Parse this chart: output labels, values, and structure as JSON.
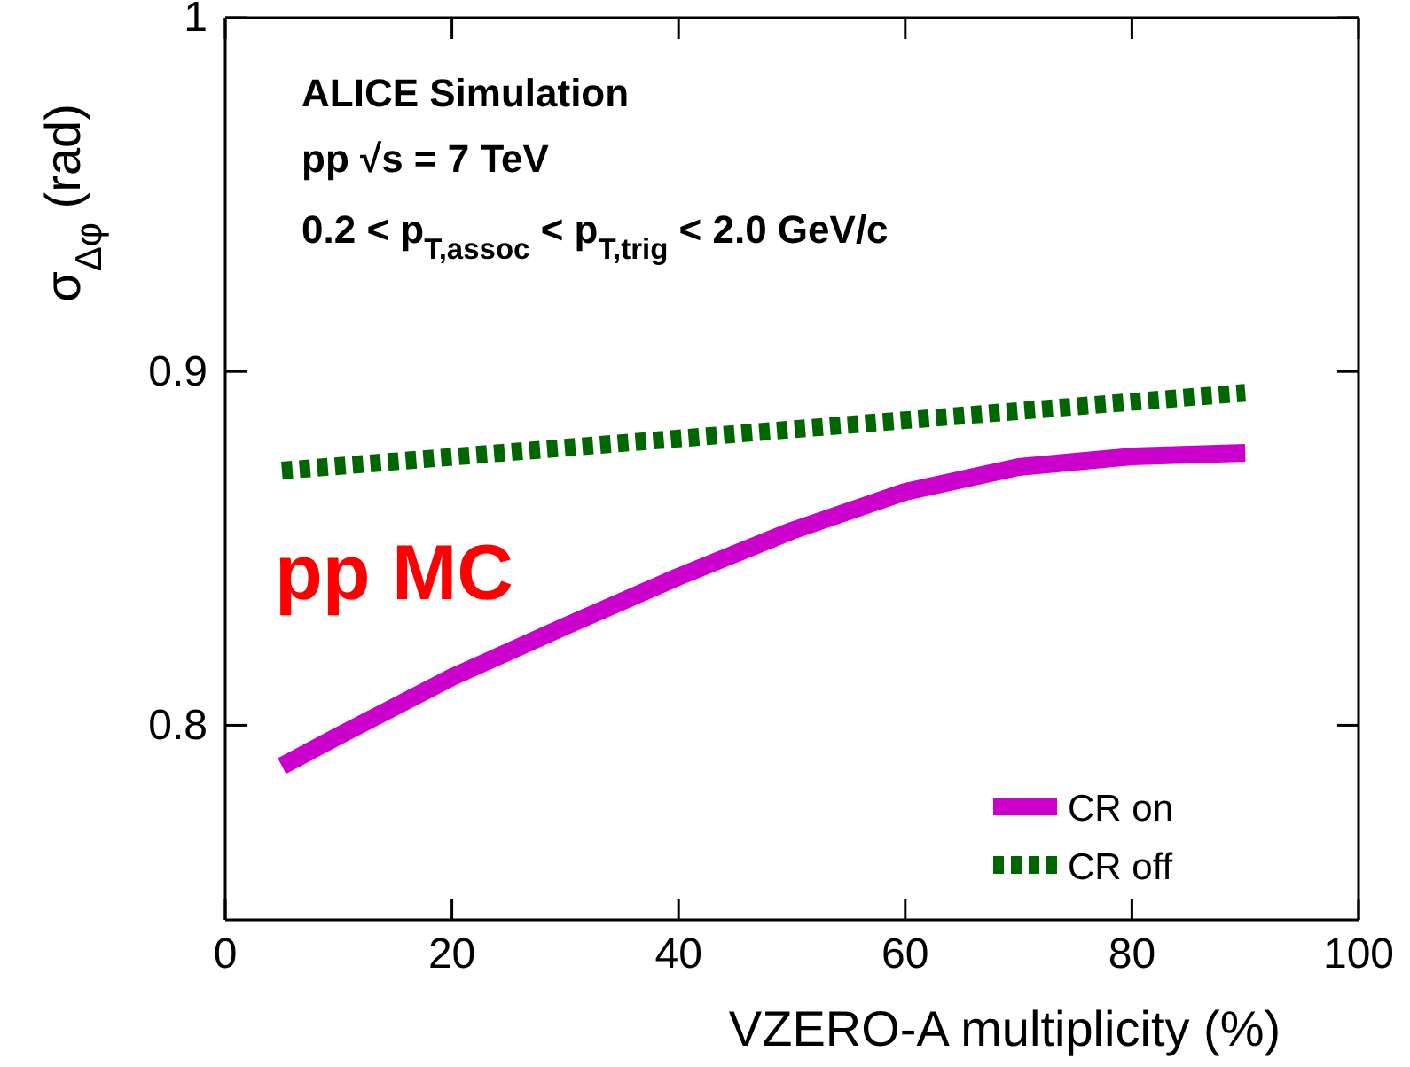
{
  "chart_data": {
    "type": "line",
    "xlabel": "VZERO-A multiplicity (%)",
    "ylabel": "σ$_{Δφ}$ (rad)",
    "xlim": [
      0,
      100
    ],
    "xticks": [
      0,
      20,
      40,
      60,
      80,
      100
    ],
    "ylim": [
      0.745,
      1.0
    ],
    "yticks": [
      0.8,
      0.9,
      1
    ],
    "legend": "bottom right",
    "grid": false,
    "annotations": [
      "ALICE Simulation",
      "pp √s = 7 TeV",
      "0.2 < p$_{T,assoc}$ < p$_{T,trig}$ < 2.0 GeV/c",
      "pp MC"
    ],
    "series": [
      {
        "name": "CR on",
        "color": "#cc00cc",
        "line_style": "solid",
        "x": [
          5,
          10,
          20,
          30,
          40,
          50,
          60,
          70,
          80,
          90
        ],
        "values": [
          0.7885,
          0.797,
          0.8136,
          0.828,
          0.842,
          0.855,
          0.866,
          0.873,
          0.876,
          0.877
        ]
      },
      {
        "name": "CR off",
        "color": "#006600",
        "line_style": "dashed",
        "x": [
          5,
          90
        ],
        "values": [
          0.872,
          0.894
        ]
      }
    ]
  }
}
